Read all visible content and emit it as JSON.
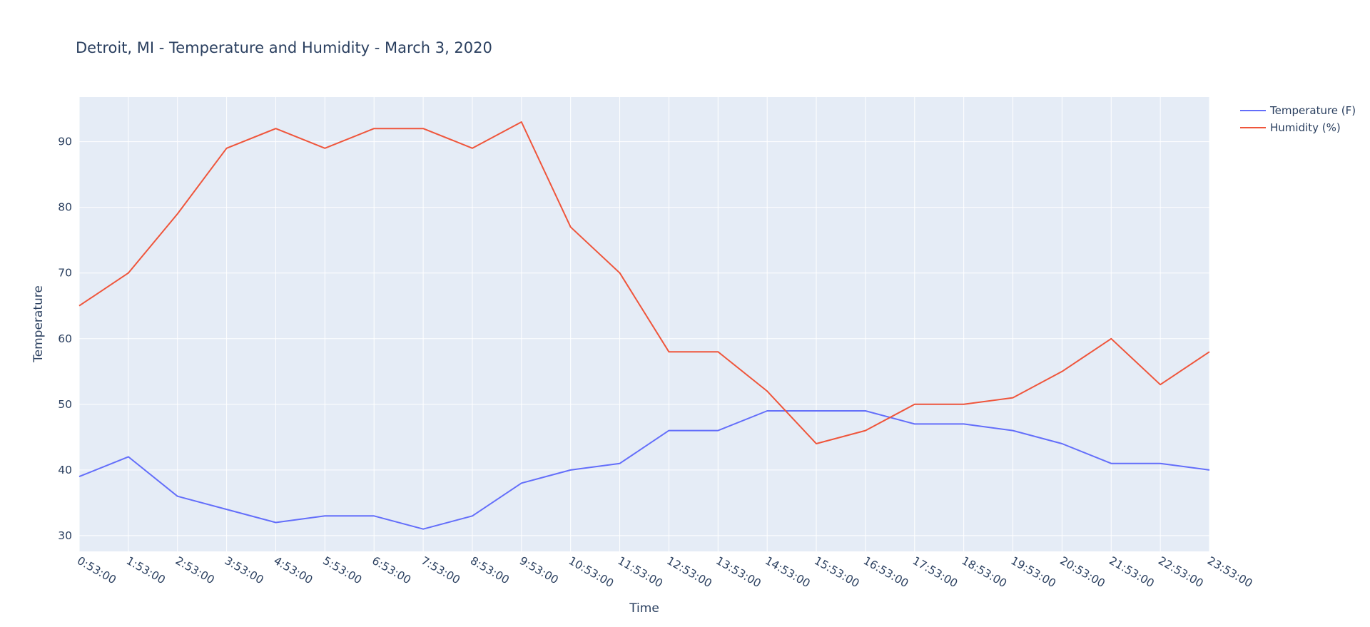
{
  "chart_data": {
    "type": "line",
    "title": "Detroit, MI - Temperature and Humidity - March 3, 2020",
    "xlabel": "Time",
    "ylabel": "Temperature",
    "ylim": [
      27.6,
      96.8
    ],
    "y_ticks": [
      30,
      40,
      50,
      60,
      70,
      80,
      90
    ],
    "categories": [
      "0:53:00",
      "1:53:00",
      "2:53:00",
      "3:53:00",
      "4:53:00",
      "5:53:00",
      "6:53:00",
      "7:53:00",
      "8:53:00",
      "9:53:00",
      "10:53:00",
      "11:53:00",
      "12:53:00",
      "13:53:00",
      "14:53:00",
      "15:53:00",
      "16:53:00",
      "17:53:00",
      "18:53:00",
      "19:53:00",
      "20:53:00",
      "21:53:00",
      "22:53:00",
      "23:53:00"
    ],
    "series": [
      {
        "name": "Temperature (F)",
        "color": "#636efa",
        "values": [
          39,
          42,
          36,
          34,
          32,
          33,
          33,
          31,
          33,
          38,
          40,
          41,
          46,
          46,
          49,
          49,
          49,
          47,
          47,
          46,
          44,
          41,
          41,
          40
        ]
      },
      {
        "name": "Humidity (%)",
        "color": "#ef553b",
        "values": [
          65,
          70,
          79,
          89,
          92,
          89,
          92,
          92,
          89,
          93,
          77,
          70,
          58,
          58,
          52,
          44,
          46,
          50,
          50,
          51,
          55,
          60,
          53,
          58
        ]
      }
    ],
    "grid": true,
    "legend_position": "top-right",
    "plot_background": "#e5ecf6"
  }
}
